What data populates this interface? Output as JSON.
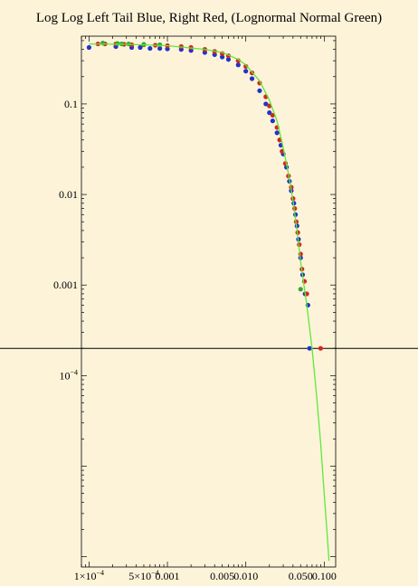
{
  "chart_data": {
    "type": "scatter",
    "title": "Log Log Left Tail Blue, Right Red, (Lognormal Normal Green)",
    "xscale": "log",
    "yscale": "log",
    "xlim": [
      8e-05,
      0.14
    ],
    "ylim": [
      7.7e-07,
      0.56
    ],
    "reference_line_y": 0.0002,
    "grid": false,
    "y_tick_labels": [
      {
        "value": 0.1,
        "label": "0.1"
      },
      {
        "value": 0.01,
        "label": "0.01"
      },
      {
        "value": 0.001,
        "label": "0.001"
      },
      {
        "value": 0.0001,
        "label": "10",
        "exp": "−4"
      }
    ],
    "x_tick_labels": [
      {
        "value": 0.0001,
        "label": "1×10",
        "exp": "−4"
      },
      {
        "value": 0.0005,
        "label": "5×10",
        "exp": "−4"
      },
      {
        "value": 0.001,
        "label": "0.001"
      },
      {
        "value": 0.005,
        "label": "0.005"
      },
      {
        "value": 0.01,
        "label": "0.010"
      },
      {
        "value": 0.05,
        "label": "0.050"
      },
      {
        "value": 0.1,
        "label": "0.100"
      }
    ],
    "series": [
      {
        "color": "#2233cc",
        "points": [
          [
            0.0001,
            0.42
          ],
          [
            0.00022,
            0.43
          ],
          [
            0.00035,
            0.42
          ],
          [
            0.00045,
            0.42
          ],
          [
            0.0006,
            0.41
          ],
          [
            0.0008,
            0.41
          ],
          [
            0.001,
            0.405
          ],
          [
            0.0015,
            0.4
          ],
          [
            0.002,
            0.39
          ],
          [
            0.003,
            0.37
          ],
          [
            0.004,
            0.35
          ],
          [
            0.005,
            0.33
          ],
          [
            0.006,
            0.31
          ],
          [
            0.008,
            0.27
          ],
          [
            0.01,
            0.23
          ],
          [
            0.012,
            0.19
          ],
          [
            0.015,
            0.14
          ],
          [
            0.018,
            0.1
          ],
          [
            0.02,
            0.08
          ],
          [
            0.022,
            0.065
          ],
          [
            0.025,
            0.048
          ],
          [
            0.028,
            0.035
          ],
          [
            0.03,
            0.028
          ],
          [
            0.033,
            0.02
          ],
          [
            0.036,
            0.014
          ],
          [
            0.038,
            0.011
          ],
          [
            0.041,
            0.008
          ],
          [
            0.043,
            0.006
          ],
          [
            0.045,
            0.0045
          ],
          [
            0.047,
            0.0032
          ],
          [
            0.05,
            0.002
          ],
          [
            0.053,
            0.0013
          ],
          [
            0.057,
            0.0008
          ],
          [
            0.062,
            0.0006
          ],
          [
            0.065,
            0.0002
          ]
        ]
      },
      {
        "color": "#d4271b",
        "points": [
          [
            0.00013,
            0.46
          ],
          [
            0.00016,
            0.46
          ],
          [
            0.00022,
            0.46
          ],
          [
            0.00028,
            0.455
          ],
          [
            0.00035,
            0.45
          ],
          [
            0.0005,
            0.45
          ],
          [
            0.0007,
            0.445
          ],
          [
            0.001,
            0.44
          ],
          [
            0.0015,
            0.43
          ],
          [
            0.002,
            0.42
          ],
          [
            0.003,
            0.4
          ],
          [
            0.004,
            0.38
          ],
          [
            0.005,
            0.36
          ],
          [
            0.006,
            0.34
          ],
          [
            0.008,
            0.3
          ],
          [
            0.01,
            0.26
          ],
          [
            0.012,
            0.22
          ],
          [
            0.015,
            0.17
          ],
          [
            0.018,
            0.12
          ],
          [
            0.02,
            0.095
          ],
          [
            0.022,
            0.075
          ],
          [
            0.025,
            0.055
          ],
          [
            0.027,
            0.04
          ],
          [
            0.029,
            0.03
          ],
          [
            0.032,
            0.022
          ],
          [
            0.035,
            0.016
          ],
          [
            0.038,
            0.012
          ],
          [
            0.04,
            0.009
          ],
          [
            0.042,
            0.007
          ],
          [
            0.044,
            0.005
          ],
          [
            0.046,
            0.0038
          ],
          [
            0.048,
            0.0028
          ],
          [
            0.05,
            0.0022
          ],
          [
            0.052,
            0.0015
          ],
          [
            0.056,
            0.0011
          ],
          [
            0.06,
            0.0008
          ],
          [
            0.09,
            0.0002
          ]
        ]
      },
      {
        "color": "#33aa33",
        "points": [
          [
            0.00015,
            0.47
          ],
          [
            0.00023,
            0.465
          ],
          [
            0.00026,
            0.46
          ],
          [
            0.00032,
            0.46
          ],
          [
            0.0005,
            0.455
          ],
          [
            0.0008,
            0.45
          ],
          [
            0.05,
            0.0009
          ]
        ]
      },
      {
        "color": "#5fe83a",
        "line": true,
        "points": [
          [
            0.0001,
            0.46
          ],
          [
            0.0003,
            0.455
          ],
          [
            0.001,
            0.44
          ],
          [
            0.003,
            0.4
          ],
          [
            0.005,
            0.37
          ],
          [
            0.008,
            0.31
          ],
          [
            0.01,
            0.27
          ],
          [
            0.015,
            0.18
          ],
          [
            0.02,
            0.11
          ],
          [
            0.025,
            0.065
          ],
          [
            0.03,
            0.033
          ],
          [
            0.035,
            0.017
          ],
          [
            0.04,
            0.0085
          ],
          [
            0.045,
            0.004
          ],
          [
            0.05,
            0.0018
          ],
          [
            0.06,
            0.0006
          ],
          [
            0.07,
            0.0002
          ],
          [
            0.08,
            6e-05
          ],
          [
            0.09,
            1.8e-05
          ],
          [
            0.1,
            5e-06
          ],
          [
            0.11,
            1.6e-06
          ],
          [
            0.115,
            9e-07
          ]
        ]
      }
    ]
  }
}
